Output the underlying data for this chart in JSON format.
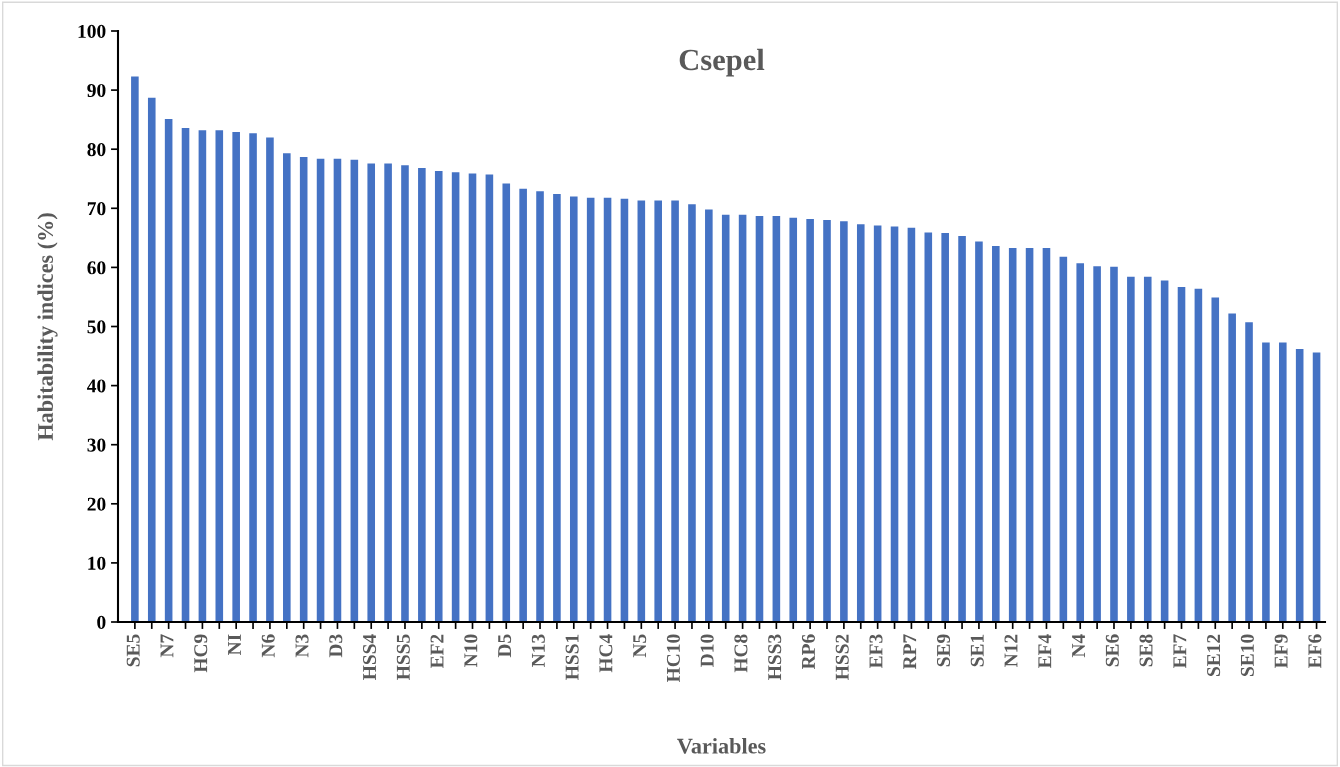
{
  "chart_data": {
    "type": "bar",
    "title": "Csepel",
    "xlabel": "Variables",
    "ylabel": "Habitability indices (%)",
    "categories": [
      "SE5",
      null,
      "N7",
      null,
      "HC9",
      null,
      "NI",
      null,
      "N6",
      null,
      "N3",
      null,
      "D3",
      null,
      "HSS4",
      null,
      "HSS5",
      null,
      "EF2",
      null,
      "N10",
      null,
      "D5",
      null,
      "N13",
      null,
      "HSS1",
      null,
      "HC4",
      null,
      "N5",
      null,
      "HC10",
      null,
      "D10",
      null,
      "HC8",
      null,
      "HSS3",
      null,
      "RP6",
      null,
      "HSS2",
      null,
      "EF3",
      null,
      "RP7",
      null,
      "SE9",
      null,
      "SE1",
      null,
      "N12",
      null,
      "EF4",
      null,
      "N4",
      null,
      "SE6",
      null,
      "SE8",
      null,
      "EF7",
      null,
      "SE12",
      null,
      "SE10",
      null,
      "EF9",
      null,
      "EF6"
    ],
    "values": [
      92.3,
      88.7,
      85.1,
      83.6,
      83.2,
      83.2,
      82.9,
      82.7,
      82.0,
      79.3,
      78.7,
      78.4,
      78.4,
      78.2,
      77.6,
      77.6,
      77.3,
      76.8,
      76.3,
      76.1,
      75.9,
      75.7,
      74.2,
      73.3,
      72.9,
      72.4,
      72.0,
      71.8,
      71.8,
      71.6,
      71.3,
      71.3,
      71.3,
      70.7,
      69.8,
      68.9,
      68.9,
      68.7,
      68.7,
      68.4,
      68.2,
      68.0,
      67.8,
      67.3,
      67.1,
      66.9,
      66.7,
      65.9,
      65.8,
      65.3,
      64.4,
      63.6,
      63.3,
      63.3,
      63.3,
      61.8,
      60.7,
      60.2,
      60.1,
      58.4,
      58.4,
      57.8,
      56.7,
      56.4,
      54.9,
      52.2,
      50.7,
      47.3,
      47.3,
      46.2,
      45.6
    ],
    "color": "#4472c4",
    "ylim": [
      0,
      100
    ],
    "yticks": [
      0,
      10,
      20,
      30,
      40,
      50,
      60,
      70,
      80,
      90,
      100
    ],
    "grid": false,
    "legend": false
  }
}
